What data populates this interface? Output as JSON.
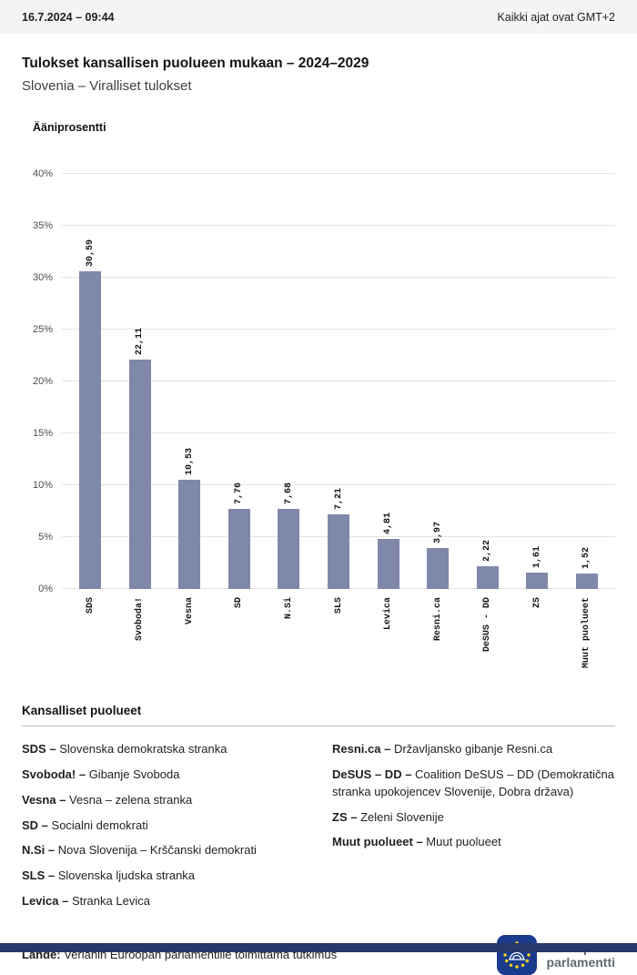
{
  "header": {
    "datetime": "16.7.2024 – 09:44",
    "timezone_note": "Kaikki ajat ovat GMT+2"
  },
  "title": "Tulokset kansallisen puolueen mukaan – 2024–2029",
  "subtitle": "Slovenia – Viralliset tulokset",
  "chart_data": {
    "type": "bar",
    "title": "Ääniprosentti",
    "categories": [
      "SDS",
      "Svoboda!",
      "Vesna",
      "SD",
      "N.Si",
      "SLS",
      "Levica",
      "Resni.ca",
      "DeSUS - DD",
      "ZS",
      "Muut puolueet"
    ],
    "values": [
      30.59,
      22.11,
      10.53,
      7.76,
      7.68,
      7.21,
      4.81,
      3.97,
      2.22,
      1.61,
      1.52
    ],
    "value_labels": [
      "30,59",
      "22,11",
      "10,53",
      "7,76",
      "7,68",
      "7,21",
      "4,81",
      "3,97",
      "2,22",
      "1,61",
      "1,52"
    ],
    "ylim": [
      0,
      40
    ],
    "ytick_step": 5,
    "ytick_suffix": "%",
    "grid": true,
    "legend_position": "none",
    "bar_color": "#8088AA"
  },
  "legend": {
    "heading": "Kansalliset puolueet",
    "columns": [
      [
        {
          "abbr": "SDS –",
          "name": "Slovenska demokratska stranka"
        },
        {
          "abbr": "Svoboda! –",
          "name": "Gibanje Svoboda"
        },
        {
          "abbr": "Vesna –",
          "name": "Vesna – zelena stranka"
        },
        {
          "abbr": "SD –",
          "name": "Socialni demokrati"
        },
        {
          "abbr": "N.Si –",
          "name": "Nova Slovenija – Krščanski demokrati"
        },
        {
          "abbr": "SLS –",
          "name": "Slovenska ljudska stranka"
        },
        {
          "abbr": "Levica –",
          "name": "Stranka Levica"
        }
      ],
      [
        {
          "abbr": "Resni.ca –",
          "name": "Državljansko gibanje Resni.ca"
        },
        {
          "abbr": "DeSUS – DD –",
          "name": "Coalition DeSUS – DD (Demokratična stranka upokojencev Slovenije, Dobra država)"
        },
        {
          "abbr": "ZS –",
          "name": "Zeleni Slovenije"
        },
        {
          "abbr": "Muut puolueet –",
          "name": "Muut puolueet"
        }
      ]
    ]
  },
  "footer": {
    "source_label": "Lähde:",
    "source_text": "Verianin Euroopan parlamentille toimittama tutkimus"
  },
  "logo": {
    "line1": "Euroopan",
    "line2": "parlamentti"
  },
  "colors": {
    "bar": "#8088AA",
    "bottom_bar": "#29386B",
    "logo_blue": "#1B3C8C",
    "star_yellow": "#FFD617"
  }
}
